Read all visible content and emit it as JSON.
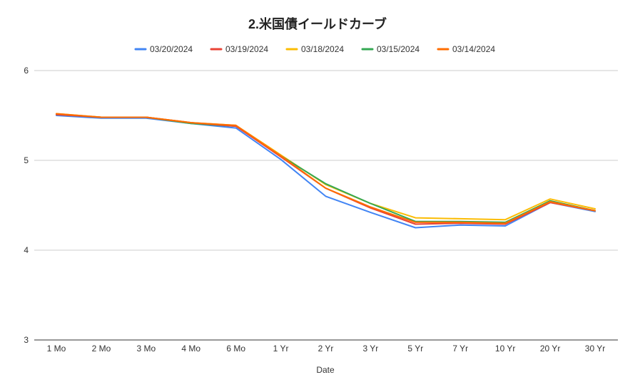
{
  "chart_data": {
    "type": "line",
    "title": "2.米国債イールドカーブ",
    "xlabel": "Date",
    "ylabel": "",
    "ylim": [
      3,
      6
    ],
    "yticks": [
      "3",
      "4",
      "5",
      "6"
    ],
    "grid": true,
    "legend_position": "top",
    "categories": [
      "1 Mo",
      "2 Mo",
      "3 Mo",
      "4 Mo",
      "6 Mo",
      "1 Yr",
      "2 Yr",
      "3 Yr",
      "5 Yr",
      "7 Yr",
      "10 Yr",
      "20 Yr",
      "30 Yr"
    ],
    "series": [
      {
        "name": "03/20/2024",
        "color": "#4285f4",
        "values": [
          5.5,
          5.47,
          5.47,
          5.41,
          5.36,
          5.01,
          4.6,
          4.42,
          4.25,
          4.28,
          4.27,
          4.53,
          4.43
        ]
      },
      {
        "name": "03/19/2024",
        "color": "#ea4335",
        "values": [
          5.51,
          5.48,
          5.48,
          5.42,
          5.38,
          5.04,
          4.69,
          4.47,
          4.29,
          4.3,
          4.29,
          4.53,
          4.44
        ]
      },
      {
        "name": "03/18/2024",
        "color": "#fbbc04",
        "values": [
          5.52,
          5.48,
          5.48,
          5.42,
          5.39,
          5.06,
          4.73,
          4.52,
          4.36,
          4.35,
          4.34,
          4.57,
          4.46
        ]
      },
      {
        "name": "03/15/2024",
        "color": "#34a853",
        "values": [
          5.51,
          5.48,
          5.48,
          5.41,
          5.38,
          5.05,
          4.74,
          4.52,
          4.32,
          4.32,
          4.31,
          4.55,
          4.44
        ]
      },
      {
        "name": "03/14/2024",
        "color": "#ff6d01",
        "values": [
          5.52,
          5.48,
          5.48,
          5.42,
          5.39,
          5.05,
          4.69,
          4.48,
          4.31,
          4.31,
          4.3,
          4.54,
          4.44
        ]
      }
    ]
  }
}
